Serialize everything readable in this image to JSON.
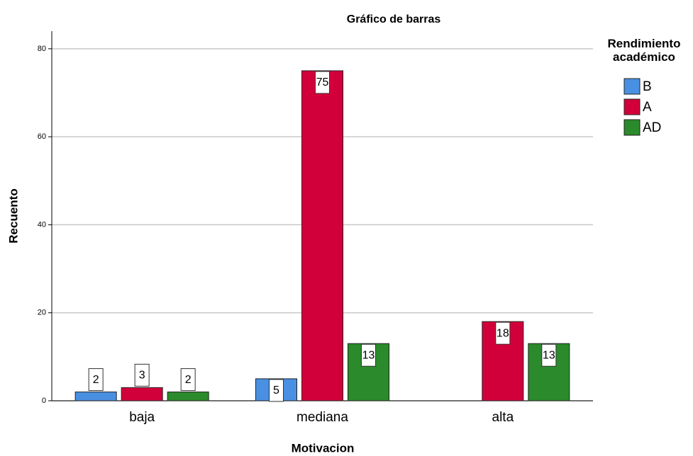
{
  "chart_data": {
    "type": "bar",
    "title": "Gráfico de barras",
    "x_label": "Motivacion",
    "y_label": "Recuento",
    "legend_title": "Rendimiento académico",
    "legend_position": "right",
    "categories": [
      "baja",
      "mediana",
      "alta"
    ],
    "series": [
      {
        "name": "B",
        "color": "#4a90e2",
        "values": [
          2,
          5,
          null
        ]
      },
      {
        "name": "A",
        "color": "#d2003a",
        "values": [
          3,
          75,
          18
        ]
      },
      {
        "name": "AD",
        "color": "#2b8a2b",
        "values": [
          2,
          13,
          13
        ]
      }
    ],
    "ylim": [
      0,
      84
    ],
    "yticks": [
      0,
      20,
      40,
      60,
      80
    ],
    "grid": true
  }
}
